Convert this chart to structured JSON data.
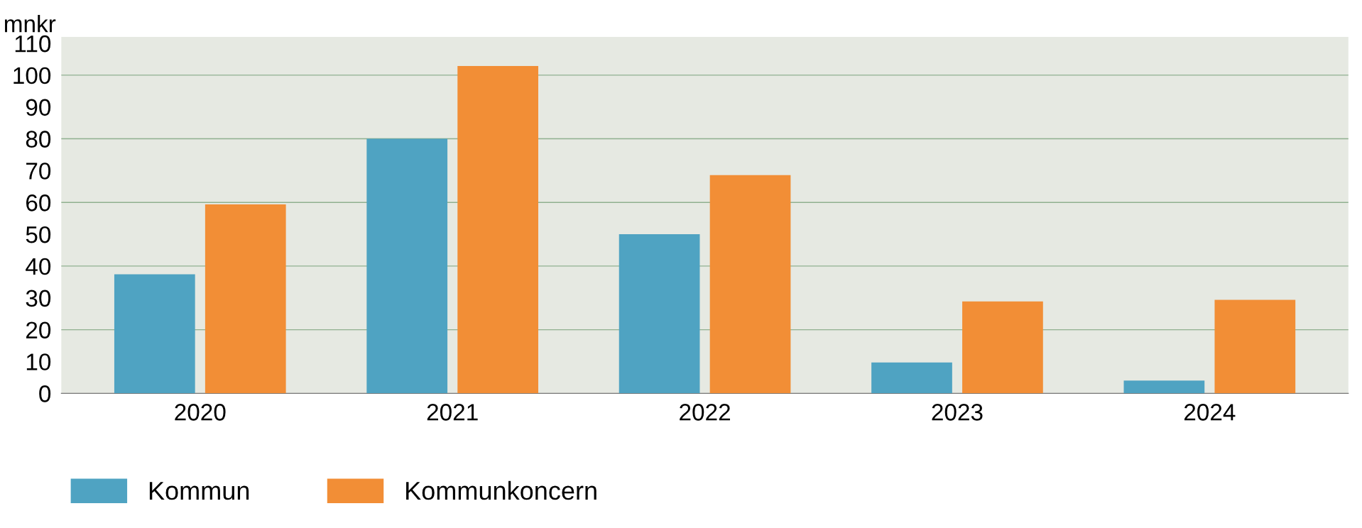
{
  "chart_data": {
    "type": "bar",
    "ylabel": "mnkr",
    "categories": [
      "2020",
      "2021",
      "2022",
      "2023",
      "2024"
    ],
    "series": [
      {
        "name": "Kommun",
        "color": "#4fa3c2",
        "values": [
          37.4,
          80,
          50,
          9.7,
          4
        ]
      },
      {
        "name": "Kommunkoncern",
        "color": "#f28e36",
        "values": [
          59.4,
          102.9,
          68.6,
          28.9,
          29.4
        ]
      }
    ],
    "ylim": [
      0,
      112
    ],
    "yticks": [
      0,
      10,
      20,
      30,
      40,
      50,
      60,
      70,
      80,
      90,
      100,
      110
    ],
    "grid": "y",
    "legend": "bottom"
  }
}
